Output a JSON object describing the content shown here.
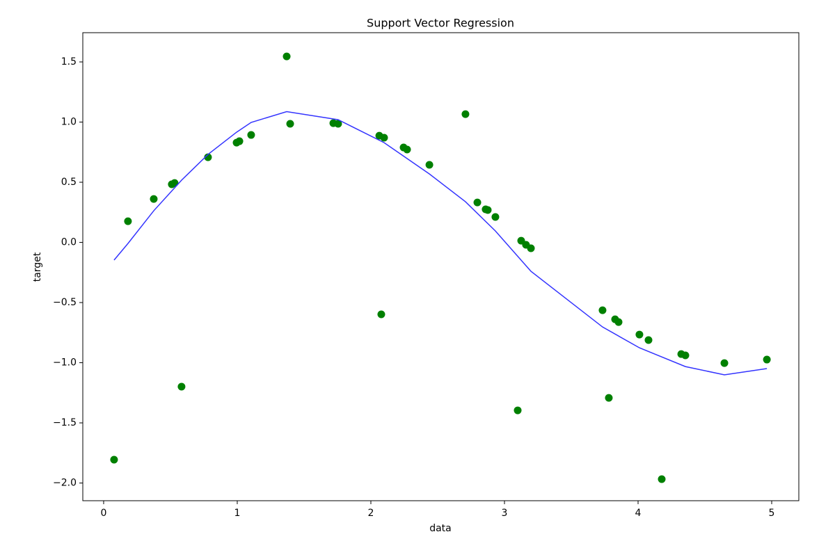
{
  "chart_data": {
    "type": "scatter",
    "title": "Support Vector Regression",
    "x_label": "data",
    "y_label": "target",
    "xlim": [
      -0.156,
      5.203
    ],
    "ylim": [
      -2.147,
      1.743
    ],
    "xticks": [
      0,
      1,
      2,
      3,
      4,
      5
    ],
    "yticks": [
      {
        "value": -2.0,
        "label": "−2.0"
      },
      {
        "value": -1.5,
        "label": "−1.5"
      },
      {
        "value": -1.0,
        "label": "−1.0"
      },
      {
        "value": -0.5,
        "label": "−0.5"
      },
      {
        "value": 0.0,
        "label": "0.0"
      },
      0.5,
      {
        "value": 1.0,
        "label": "1.0"
      },
      1.5
    ],
    "grid": false,
    "series": [
      {
        "type": "scatter",
        "color": "#008000",
        "x": [
          0.078,
          0.182,
          0.375,
          0.51,
          0.531,
          0.583,
          0.781,
          0.995,
          1.016,
          1.104,
          1.37,
          1.396,
          1.719,
          1.755,
          2.063,
          2.099,
          2.078,
          2.245,
          2.271,
          2.438,
          2.708,
          2.797,
          2.859,
          2.875,
          2.932,
          3.099,
          3.125,
          3.161,
          3.198,
          3.734,
          3.781,
          3.828,
          3.854,
          4.01,
          4.078,
          4.177,
          4.323,
          4.354,
          4.646,
          4.964
        ],
        "values": [
          -1.806,
          0.176,
          0.361,
          0.483,
          0.494,
          -1.199,
          0.708,
          0.829,
          0.841,
          0.893,
          1.546,
          0.986,
          0.991,
          0.986,
          0.887,
          0.87,
          -0.598,
          0.789,
          0.772,
          0.645,
          1.066,
          0.332,
          0.275,
          0.269,
          0.211,
          -1.396,
          0.014,
          -0.02,
          -0.049,
          -0.564,
          -1.292,
          -0.639,
          -0.662,
          -0.766,
          -0.812,
          -1.968,
          -0.928,
          -0.939,
          -1.003,
          -0.974
        ]
      },
      {
        "type": "line",
        "color": "#3333ff",
        "x": [
          0.078,
          0.182,
          0.375,
          0.583,
          0.781,
          0.995,
          1.104,
          1.37,
          1.755,
          2.099,
          2.438,
          2.708,
          2.932,
          3.198,
          3.734,
          4.01,
          4.354,
          4.646,
          4.964
        ],
        "values": [
          -0.147,
          -0.009,
          0.263,
          0.517,
          0.731,
          0.916,
          0.997,
          1.087,
          1.02,
          0.829,
          0.569,
          0.338,
          0.095,
          -0.24,
          -0.703,
          -0.876,
          -1.032,
          -1.101,
          -1.049
        ]
      }
    ]
  }
}
